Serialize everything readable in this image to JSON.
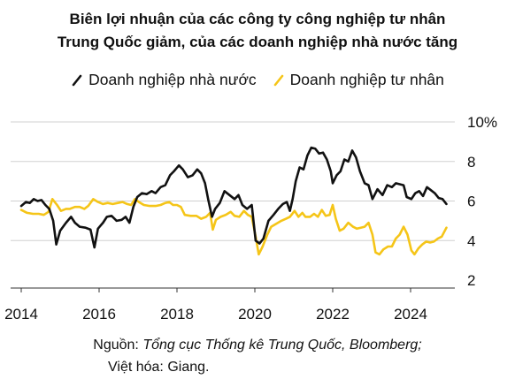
{
  "title_lines": [
    "Biên lợi nhuận của các công ty công nghiệp tư nhân",
    "Trung Quốc giảm, của các doanh nghiệp nhà nước tăng"
  ],
  "source": {
    "label": "Nguồn: ",
    "italic": "Tổng cục Thống kê Trung Quốc, Bloomberg;",
    "line2": "Việt hóa: Giang."
  },
  "colors": {
    "soe": "#111111",
    "private": "#f5c518",
    "grid": "#d0d0d0",
    "axis": "#333333"
  },
  "chart_data": {
    "type": "line",
    "xlim": [
      2013.75,
      2025.7
    ],
    "ylim": [
      2,
      10.3
    ],
    "x_ticks": [
      2014,
      2016,
      2018,
      2020,
      2022,
      2024
    ],
    "x_tick_labels": [
      "2014",
      "2016",
      "2018",
      "2020",
      "2022",
      "2024"
    ],
    "y_ticks": [
      2,
      4,
      6,
      8,
      10
    ],
    "y_tick_labels": [
      "2",
      "4",
      "6",
      "8",
      "10%"
    ],
    "gridlines": true,
    "legend_position": "top",
    "series": [
      {
        "name": "Doanh nghiệp nhà nước",
        "color": "#111111",
        "points": [
          [
            2014.0,
            5.75
          ],
          [
            2014.12,
            5.95
          ],
          [
            2014.22,
            5.9
          ],
          [
            2014.32,
            6.1
          ],
          [
            2014.42,
            6.0
          ],
          [
            2014.52,
            6.05
          ],
          [
            2014.62,
            5.8
          ],
          [
            2014.72,
            5.6
          ],
          [
            2014.82,
            5.0
          ],
          [
            2014.9,
            3.8
          ],
          [
            2015.0,
            4.5
          ],
          [
            2015.15,
            4.9
          ],
          [
            2015.28,
            5.2
          ],
          [
            2015.38,
            4.9
          ],
          [
            2015.5,
            4.7
          ],
          [
            2015.65,
            4.65
          ],
          [
            2015.78,
            4.55
          ],
          [
            2015.88,
            3.65
          ],
          [
            2015.97,
            4.6
          ],
          [
            2016.1,
            4.9
          ],
          [
            2016.2,
            5.2
          ],
          [
            2016.32,
            5.25
          ],
          [
            2016.45,
            5.0
          ],
          [
            2016.58,
            5.05
          ],
          [
            2016.68,
            5.2
          ],
          [
            2016.78,
            4.9
          ],
          [
            2016.88,
            5.7
          ],
          [
            2016.98,
            6.2
          ],
          [
            2017.1,
            6.4
          ],
          [
            2017.22,
            6.35
          ],
          [
            2017.35,
            6.5
          ],
          [
            2017.45,
            6.4
          ],
          [
            2017.58,
            6.7
          ],
          [
            2017.7,
            6.8
          ],
          [
            2017.82,
            7.3
          ],
          [
            2017.92,
            7.5
          ],
          [
            2018.05,
            7.8
          ],
          [
            2018.15,
            7.6
          ],
          [
            2018.28,
            7.2
          ],
          [
            2018.4,
            7.3
          ],
          [
            2018.52,
            7.6
          ],
          [
            2018.62,
            7.4
          ],
          [
            2018.72,
            6.9
          ],
          [
            2018.8,
            6.1
          ],
          [
            2018.9,
            5.2
          ],
          [
            2018.98,
            5.6
          ],
          [
            2019.1,
            5.9
          ],
          [
            2019.22,
            6.5
          ],
          [
            2019.35,
            6.3
          ],
          [
            2019.48,
            6.1
          ],
          [
            2019.58,
            6.3
          ],
          [
            2019.68,
            5.8
          ],
          [
            2019.8,
            5.6
          ],
          [
            2019.92,
            5.8
          ],
          [
            2020.02,
            4.0
          ],
          [
            2020.12,
            3.85
          ],
          [
            2020.22,
            4.1
          ],
          [
            2020.35,
            5.0
          ],
          [
            2020.48,
            5.3
          ],
          [
            2020.6,
            5.6
          ],
          [
            2020.72,
            5.85
          ],
          [
            2020.82,
            5.95
          ],
          [
            2020.9,
            5.5
          ],
          [
            2020.97,
            6.1
          ],
          [
            2021.05,
            7.0
          ],
          [
            2021.15,
            7.7
          ],
          [
            2021.25,
            7.6
          ],
          [
            2021.35,
            8.3
          ],
          [
            2021.45,
            8.7
          ],
          [
            2021.55,
            8.65
          ],
          [
            2021.65,
            8.4
          ],
          [
            2021.75,
            8.45
          ],
          [
            2021.85,
            8.1
          ],
          [
            2021.95,
            7.5
          ],
          [
            2022.0,
            6.9
          ],
          [
            2022.1,
            7.3
          ],
          [
            2022.2,
            7.5
          ],
          [
            2022.3,
            8.1
          ],
          [
            2022.4,
            8.0
          ],
          [
            2022.5,
            8.55
          ],
          [
            2022.6,
            8.2
          ],
          [
            2022.7,
            7.5
          ],
          [
            2022.82,
            6.9
          ],
          [
            2022.92,
            6.8
          ],
          [
            2023.02,
            6.1
          ],
          [
            2023.15,
            6.6
          ],
          [
            2023.28,
            6.3
          ],
          [
            2023.4,
            6.8
          ],
          [
            2023.52,
            6.7
          ],
          [
            2023.62,
            6.9
          ],
          [
            2023.72,
            6.85
          ],
          [
            2023.82,
            6.8
          ],
          [
            2023.9,
            6.2
          ],
          [
            2024.02,
            6.1
          ],
          [
            2024.12,
            6.4
          ],
          [
            2024.22,
            6.5
          ],
          [
            2024.32,
            6.25
          ],
          [
            2024.42,
            6.7
          ],
          [
            2024.52,
            6.55
          ],
          [
            2024.62,
            6.4
          ],
          [
            2024.72,
            6.15
          ],
          [
            2024.82,
            6.1
          ],
          [
            2024.92,
            5.85
          ]
        ]
      },
      {
        "name": "Doanh nghiệp tư nhân",
        "color": "#f5c518",
        "points": [
          [
            2014.0,
            5.55
          ],
          [
            2014.15,
            5.4
          ],
          [
            2014.3,
            5.35
          ],
          [
            2014.45,
            5.35
          ],
          [
            2014.58,
            5.3
          ],
          [
            2014.7,
            5.45
          ],
          [
            2014.8,
            6.1
          ],
          [
            2014.92,
            5.8
          ],
          [
            2015.02,
            5.5
          ],
          [
            2015.15,
            5.6
          ],
          [
            2015.25,
            5.6
          ],
          [
            2015.38,
            5.7
          ],
          [
            2015.5,
            5.7
          ],
          [
            2015.62,
            5.6
          ],
          [
            2015.72,
            5.75
          ],
          [
            2015.85,
            6.1
          ],
          [
            2015.97,
            5.95
          ],
          [
            2016.1,
            5.85
          ],
          [
            2016.22,
            5.9
          ],
          [
            2016.35,
            5.85
          ],
          [
            2016.48,
            5.9
          ],
          [
            2016.6,
            5.95
          ],
          [
            2016.72,
            5.85
          ],
          [
            2016.82,
            5.8
          ],
          [
            2016.92,
            6.1
          ],
          [
            2017.02,
            5.95
          ],
          [
            2017.15,
            5.8
          ],
          [
            2017.3,
            5.75
          ],
          [
            2017.45,
            5.75
          ],
          [
            2017.58,
            5.8
          ],
          [
            2017.7,
            5.9
          ],
          [
            2017.8,
            5.95
          ],
          [
            2017.9,
            5.8
          ],
          [
            2018.0,
            5.8
          ],
          [
            2018.1,
            5.7
          ],
          [
            2018.2,
            5.3
          ],
          [
            2018.35,
            5.25
          ],
          [
            2018.5,
            5.25
          ],
          [
            2018.62,
            5.1
          ],
          [
            2018.75,
            5.2
          ],
          [
            2018.85,
            5.4
          ],
          [
            2018.92,
            4.55
          ],
          [
            2019.0,
            5.05
          ],
          [
            2019.12,
            5.2
          ],
          [
            2019.25,
            5.3
          ],
          [
            2019.38,
            5.45
          ],
          [
            2019.48,
            5.25
          ],
          [
            2019.6,
            5.2
          ],
          [
            2019.72,
            5.5
          ],
          [
            2019.82,
            5.3
          ],
          [
            2019.92,
            5.2
          ],
          [
            2020.02,
            4.2
          ],
          [
            2020.1,
            3.3
          ],
          [
            2020.2,
            3.7
          ],
          [
            2020.32,
            4.3
          ],
          [
            2020.42,
            4.7
          ],
          [
            2020.55,
            4.85
          ],
          [
            2020.68,
            5.0
          ],
          [
            2020.8,
            5.1
          ],
          [
            2020.9,
            5.2
          ],
          [
            2021.02,
            5.5
          ],
          [
            2021.12,
            5.2
          ],
          [
            2021.22,
            5.4
          ],
          [
            2021.3,
            5.2
          ],
          [
            2021.42,
            5.2
          ],
          [
            2021.52,
            5.35
          ],
          [
            2021.62,
            5.2
          ],
          [
            2021.72,
            5.55
          ],
          [
            2021.82,
            5.25
          ],
          [
            2021.92,
            5.3
          ],
          [
            2022.0,
            5.8
          ],
          [
            2022.08,
            5.1
          ],
          [
            2022.18,
            4.5
          ],
          [
            2022.28,
            4.6
          ],
          [
            2022.4,
            4.9
          ],
          [
            2022.52,
            4.7
          ],
          [
            2022.62,
            4.6
          ],
          [
            2022.72,
            4.65
          ],
          [
            2022.82,
            4.7
          ],
          [
            2022.92,
            4.9
          ],
          [
            2023.02,
            4.3
          ],
          [
            2023.1,
            3.4
          ],
          [
            2023.2,
            3.3
          ],
          [
            2023.3,
            3.55
          ],
          [
            2023.42,
            3.7
          ],
          [
            2023.52,
            3.7
          ],
          [
            2023.62,
            4.1
          ],
          [
            2023.72,
            4.3
          ],
          [
            2023.82,
            4.7
          ],
          [
            2023.92,
            4.3
          ],
          [
            2024.02,
            3.5
          ],
          [
            2024.1,
            3.3
          ],
          [
            2024.2,
            3.6
          ],
          [
            2024.3,
            3.8
          ],
          [
            2024.4,
            3.95
          ],
          [
            2024.5,
            3.9
          ],
          [
            2024.6,
            3.95
          ],
          [
            2024.7,
            4.1
          ],
          [
            2024.8,
            4.2
          ],
          [
            2024.92,
            4.65
          ]
        ]
      }
    ]
  }
}
